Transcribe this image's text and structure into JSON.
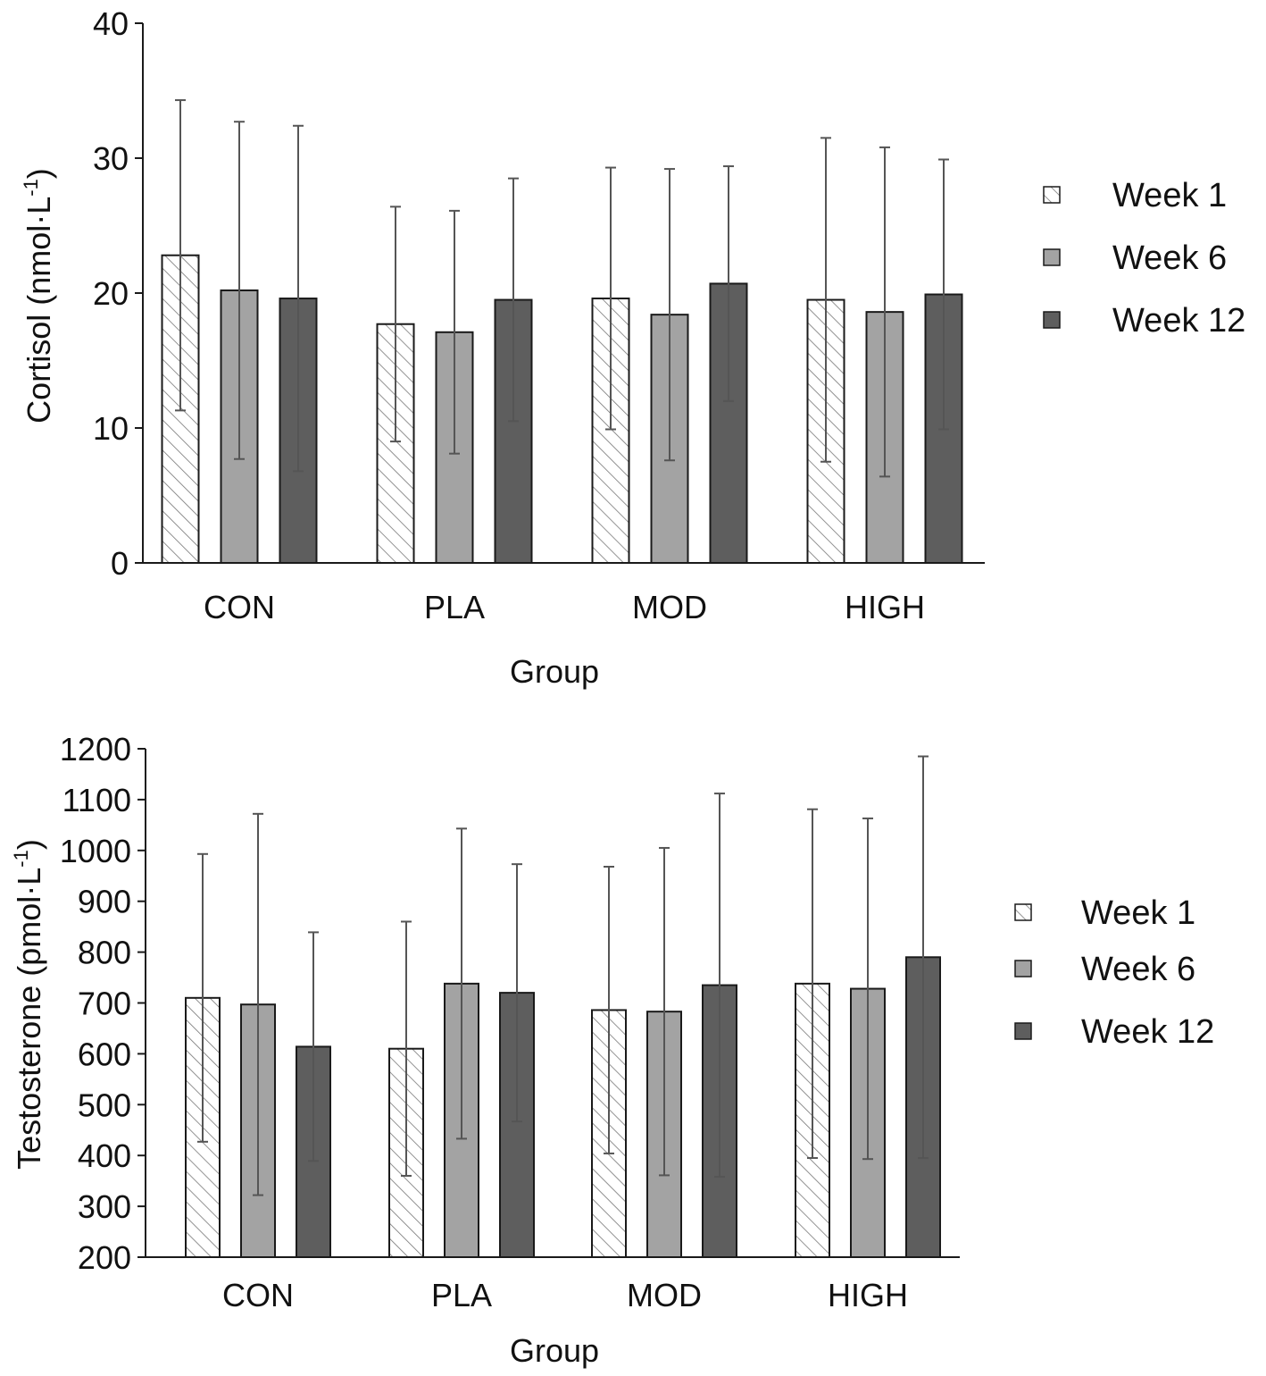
{
  "chart_data": [
    {
      "type": "bar",
      "id": "cortisol",
      "title": "",
      "xlabel": "Group",
      "ylabel_main": "Cortisol (nmol·L",
      "ylabel_sup": "-1",
      "ylabel_close": ")",
      "ylim": [
        0,
        40
      ],
      "yticks": [
        "0",
        "10",
        "20",
        "30",
        "40"
      ],
      "grid": false,
      "legend": "right",
      "categories": [
        "CON",
        "PLA",
        "MOD",
        "HIGH"
      ],
      "series": [
        {
          "name": "Week 1",
          "style": "hatched",
          "values": [
            22.8,
            17.7,
            19.6,
            19.5
          ],
          "errors": [
            11.5,
            8.7,
            9.7,
            12.0
          ]
        },
        {
          "name": "Week 6",
          "style": "light",
          "values": [
            20.2,
            17.1,
            18.4,
            18.6
          ],
          "errors": [
            12.5,
            9.0,
            10.8,
            12.2
          ]
        },
        {
          "name": "Week 12",
          "style": "dark",
          "values": [
            19.6,
            19.5,
            20.7,
            19.9
          ],
          "errors": [
            12.8,
            9.0,
            8.7,
            10.0
          ]
        }
      ]
    },
    {
      "type": "bar",
      "id": "testosterone",
      "title": "",
      "xlabel": "Group",
      "ylabel_main": "Testosterone (pmol·L",
      "ylabel_sup": "-1",
      "ylabel_close": ")",
      "ylim": [
        200,
        1200
      ],
      "yticks": [
        "200",
        "300",
        "400",
        "500",
        "600",
        "700",
        "800",
        "900",
        "1000",
        "1100",
        "1200"
      ],
      "grid": false,
      "legend": "right",
      "categories": [
        "CON",
        "PLA",
        "MOD",
        "HIGH"
      ],
      "series": [
        {
          "name": "Week 1",
          "style": "hatched",
          "values": [
            710,
            610,
            686,
            738
          ],
          "errors": [
            283,
            250,
            282,
            343
          ]
        },
        {
          "name": "Week 6",
          "style": "light",
          "values": [
            697,
            738,
            683,
            728
          ],
          "errors": [
            375,
            305,
            322,
            335
          ]
        },
        {
          "name": "Week 12",
          "style": "dark",
          "values": [
            614,
            720,
            735,
            790
          ],
          "errors": [
            225,
            253,
            377,
            395
          ]
        }
      ]
    }
  ],
  "colors": {
    "hatched_fill": "#ffffff",
    "light_fill": "#a3a3a3",
    "dark_fill": "#5e5e5e",
    "stroke": "#1a1a1a",
    "error_bar": "#555555"
  }
}
